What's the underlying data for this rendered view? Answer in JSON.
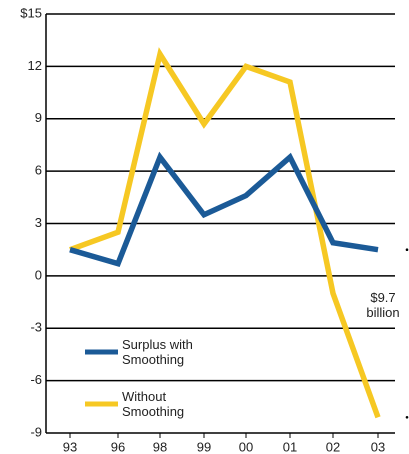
{
  "chart_data": {
    "type": "line",
    "categories": [
      "93",
      "96",
      "98",
      "99",
      "00",
      "01",
      "02",
      "03"
    ],
    "series": [
      {
        "name": "Surplus with Smoothing",
        "color": "#1b5a97",
        "values": [
          1.5,
          0.7,
          6.8,
          3.5,
          4.6,
          6.8,
          1.9,
          1.5
        ]
      },
      {
        "name": "Without Smoothing",
        "color": "#f6c823",
        "values": [
          1.5,
          2.5,
          12.7,
          8.7,
          12.0,
          11.1,
          -1.0,
          -8.1
        ]
      }
    ],
    "ylim": [
      -9,
      15
    ],
    "yticks": [
      {
        "value": 15,
        "label": "$15"
      },
      12,
      9,
      6,
      3,
      0,
      -3,
      -6,
      -9
    ],
    "grid": true,
    "annotation": "$9.7 billion"
  }
}
